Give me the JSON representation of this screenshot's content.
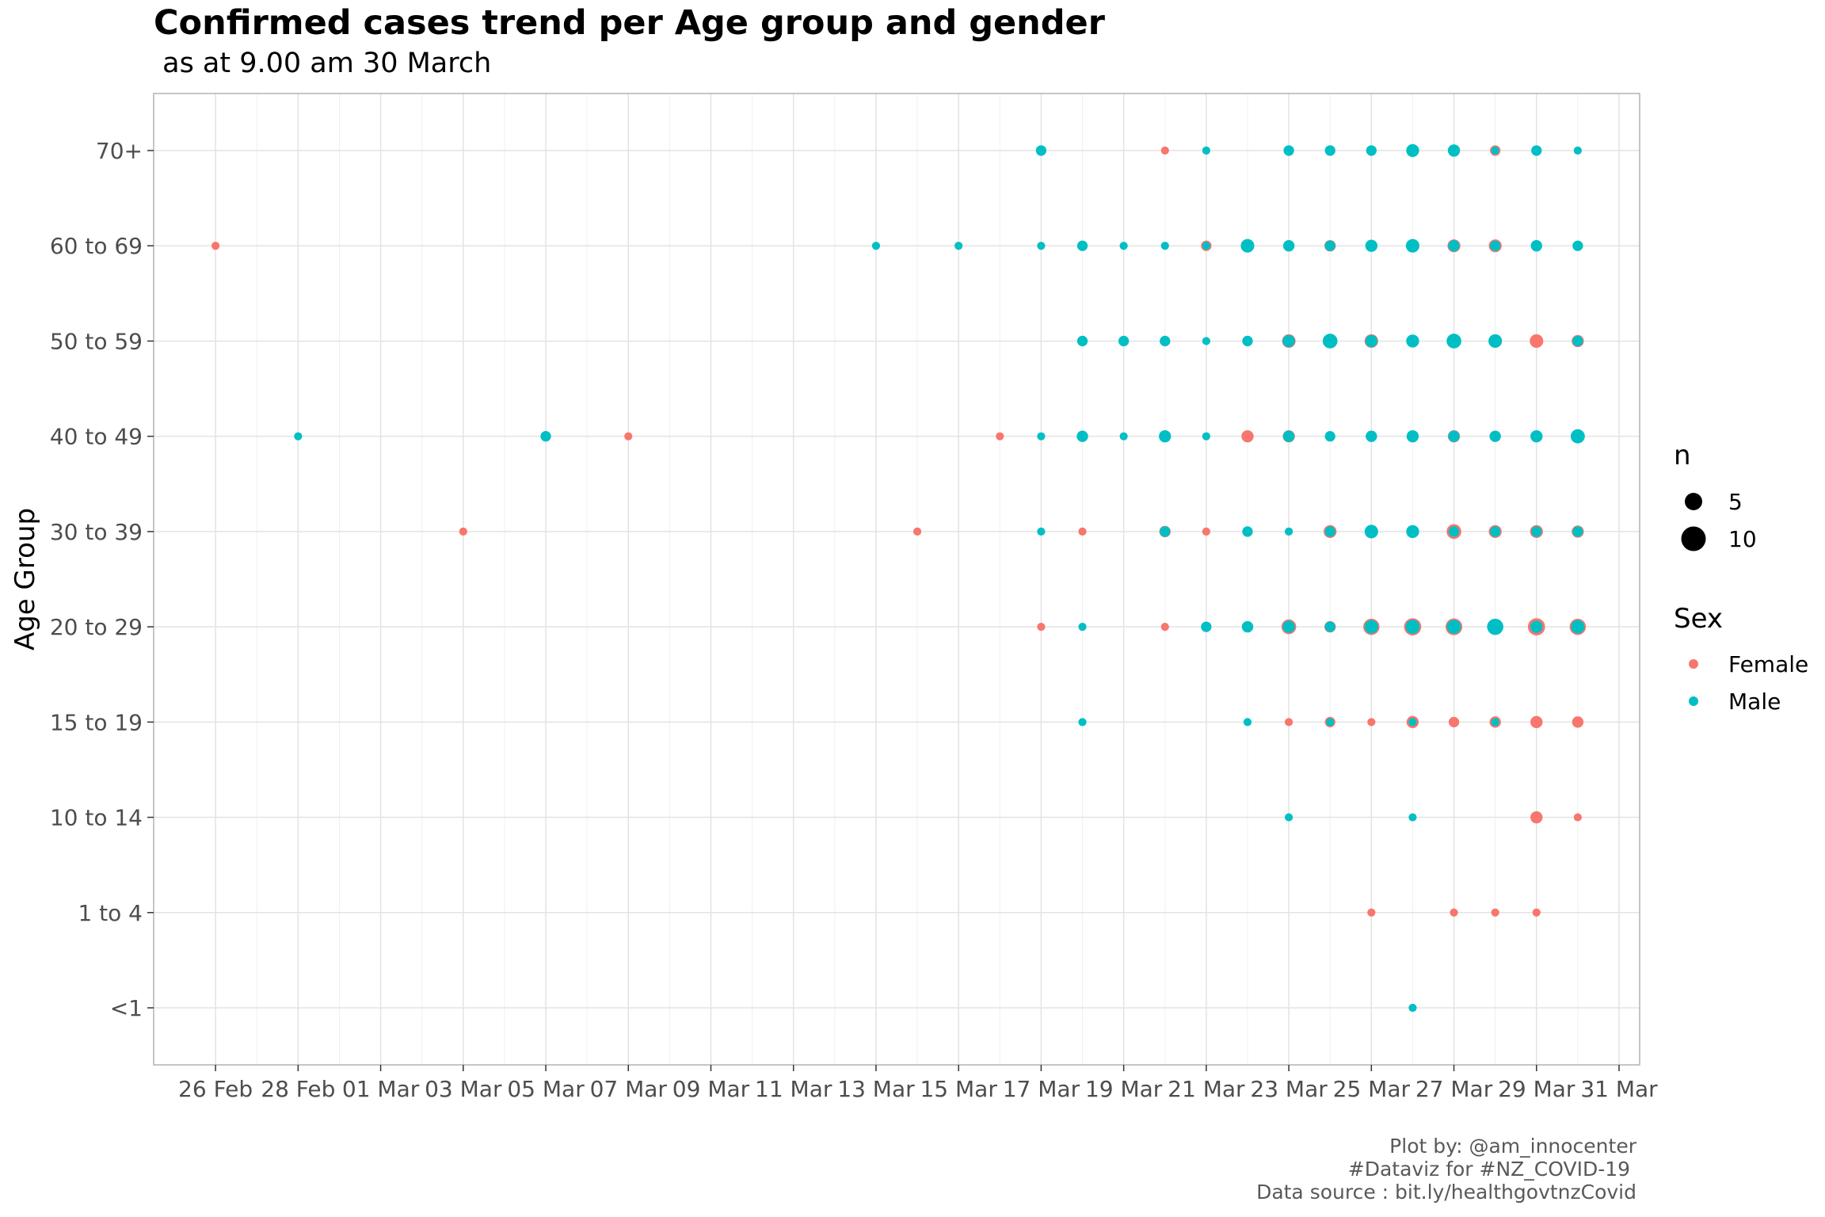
{
  "chart_data": {
    "type": "scatter",
    "title": "Confirmed cases trend per Age group and gender",
    "subtitle": " as at 9.00 am 30 March",
    "ylabel": "Age Group",
    "xlabel": "",
    "x_range": [
      "2020-02-25",
      "2020-03-31"
    ],
    "x_tick_dates": [
      "2020-02-26",
      "2020-02-28",
      "2020-03-01",
      "2020-03-03",
      "2020-03-05",
      "2020-03-07",
      "2020-03-09",
      "2020-03-11",
      "2020-03-13",
      "2020-03-15",
      "2020-03-17",
      "2020-03-19",
      "2020-03-21",
      "2020-03-23",
      "2020-03-25",
      "2020-03-27",
      "2020-03-29",
      "2020-03-31"
    ],
    "x_tick_labels": [
      "26 Feb",
      "28 Feb",
      "01 Mar",
      "03 Mar",
      "05 Mar",
      "07 Mar",
      "09 Mar",
      "11 Mar",
      "13 Mar",
      "15 Mar",
      "17 Mar",
      "19 Mar",
      "21 Mar",
      "23 Mar",
      "25 Mar",
      "27 Mar",
      "29 Mar",
      "31 Mar"
    ],
    "categories": [
      "<1",
      "1 to 4",
      "10 to 14",
      "15 to 19",
      "20 to 29",
      "30 to 39",
      "40 to 49",
      "50 to 59",
      "60 to 69",
      "70+"
    ],
    "grid": true,
    "legend_placement": "right",
    "size_legend": {
      "title": "n",
      "values": [
        5,
        10
      ]
    },
    "color_legend": {
      "title": "Sex",
      "entries": [
        "Female",
        "Male"
      ]
    },
    "colors": {
      "Female": "#F8766D",
      "Male": "#00BFC4"
    },
    "series": [
      {
        "name": "Female",
        "points": [
          {
            "x": "2020-02-26",
            "y": "60 to 69",
            "n": 1
          },
          {
            "x": "2020-03-03",
            "y": "30 to 39",
            "n": 1
          },
          {
            "x": "2020-03-07",
            "y": "40 to 49",
            "n": 1
          },
          {
            "x": "2020-03-14",
            "y": "30 to 39",
            "n": 1
          },
          {
            "x": "2020-03-16",
            "y": "40 to 49",
            "n": 1
          },
          {
            "x": "2020-03-17",
            "y": "20 to 29",
            "n": 1
          },
          {
            "x": "2020-03-18",
            "y": "30 to 39",
            "n": 1
          },
          {
            "x": "2020-03-20",
            "y": "70+",
            "n": 1
          },
          {
            "x": "2020-03-20",
            "y": "30 to 39",
            "n": 4
          },
          {
            "x": "2020-03-20",
            "y": "20 to 29",
            "n": 1
          },
          {
            "x": "2020-03-21",
            "y": "60 to 69",
            "n": 3
          },
          {
            "x": "2020-03-21",
            "y": "30 to 39",
            "n": 1
          },
          {
            "x": "2020-03-22",
            "y": "40 to 49",
            "n": 5
          },
          {
            "x": "2020-03-23",
            "y": "50 to 59",
            "n": 7
          },
          {
            "x": "2020-03-23",
            "y": "40 to 49",
            "n": 5
          },
          {
            "x": "2020-03-23",
            "y": "20 to 29",
            "n": 9
          },
          {
            "x": "2020-03-23",
            "y": "15 to 19",
            "n": 1
          },
          {
            "x": "2020-03-24",
            "y": "60 to 69",
            "n": 4
          },
          {
            "x": "2020-03-24",
            "y": "30 to 39",
            "n": 6
          },
          {
            "x": "2020-03-24",
            "y": "20 to 29",
            "n": 4
          },
          {
            "x": "2020-03-24",
            "y": "15 to 19",
            "n": 3
          },
          {
            "x": "2020-03-25",
            "y": "50 to 59",
            "n": 7
          },
          {
            "x": "2020-03-25",
            "y": "20 to 29",
            "n": 12
          },
          {
            "x": "2020-03-25",
            "y": "15 to 19",
            "n": 1
          },
          {
            "x": "2020-03-25",
            "y": "1 to 4",
            "n": 1
          },
          {
            "x": "2020-03-26",
            "y": "20 to 29",
            "n": 14
          },
          {
            "x": "2020-03-26",
            "y": "15 to 19",
            "n": 5
          },
          {
            "x": "2020-03-27",
            "y": "60 to 69",
            "n": 6
          },
          {
            "x": "2020-03-27",
            "y": "40 to 49",
            "n": 5
          },
          {
            "x": "2020-03-27",
            "y": "30 to 39",
            "n": 9
          },
          {
            "x": "2020-03-27",
            "y": "20 to 29",
            "n": 13
          },
          {
            "x": "2020-03-27",
            "y": "15 to 19",
            "n": 3
          },
          {
            "x": "2020-03-27",
            "y": "1 to 4",
            "n": 1
          },
          {
            "x": "2020-03-28",
            "y": "70+",
            "n": 3
          },
          {
            "x": "2020-03-28",
            "y": "60 to 69",
            "n": 6
          },
          {
            "x": "2020-03-28",
            "y": "30 to 39",
            "n": 6
          },
          {
            "x": "2020-03-28",
            "y": "15 to 19",
            "n": 4
          },
          {
            "x": "2020-03-28",
            "y": "1 to 4",
            "n": 1
          },
          {
            "x": "2020-03-29",
            "y": "50 to 59",
            "n": 7
          },
          {
            "x": "2020-03-29",
            "y": "30 to 39",
            "n": 6
          },
          {
            "x": "2020-03-29",
            "y": "20 to 29",
            "n": 14
          },
          {
            "x": "2020-03-29",
            "y": "15 to 19",
            "n": 5
          },
          {
            "x": "2020-03-29",
            "y": "10 to 14",
            "n": 5
          },
          {
            "x": "2020-03-29",
            "y": "1 to 4",
            "n": 1
          },
          {
            "x": "2020-03-30",
            "y": "50 to 59",
            "n": 5
          },
          {
            "x": "2020-03-30",
            "y": "30 to 39",
            "n": 5
          },
          {
            "x": "2020-03-30",
            "y": "20 to 29",
            "n": 12
          },
          {
            "x": "2020-03-30",
            "y": "15 to 19",
            "n": 4
          },
          {
            "x": "2020-03-30",
            "y": "10 to 14",
            "n": 1
          }
        ]
      },
      {
        "name": "Male",
        "points": [
          {
            "x": "2020-02-28",
            "y": "40 to 49",
            "n": 1
          },
          {
            "x": "2020-03-05",
            "y": "40 to 49",
            "n": 3
          },
          {
            "x": "2020-03-13",
            "y": "60 to 69",
            "n": 1
          },
          {
            "x": "2020-03-15",
            "y": "60 to 69",
            "n": 1
          },
          {
            "x": "2020-03-17",
            "y": "70+",
            "n": 3
          },
          {
            "x": "2020-03-17",
            "y": "60 to 69",
            "n": 1
          },
          {
            "x": "2020-03-17",
            "y": "40 to 49",
            "n": 1
          },
          {
            "x": "2020-03-17",
            "y": "30 to 39",
            "n": 1
          },
          {
            "x": "2020-03-18",
            "y": "60 to 69",
            "n": 3
          },
          {
            "x": "2020-03-18",
            "y": "50 to 59",
            "n": 3
          },
          {
            "x": "2020-03-18",
            "y": "40 to 49",
            "n": 4
          },
          {
            "x": "2020-03-18",
            "y": "20 to 29",
            "n": 1
          },
          {
            "x": "2020-03-18",
            "y": "15 to 19",
            "n": 1
          },
          {
            "x": "2020-03-19",
            "y": "60 to 69",
            "n": 1
          },
          {
            "x": "2020-03-19",
            "y": "50 to 59",
            "n": 3
          },
          {
            "x": "2020-03-19",
            "y": "40 to 49",
            "n": 1
          },
          {
            "x": "2020-03-20",
            "y": "60 to 69",
            "n": 1
          },
          {
            "x": "2020-03-20",
            "y": "50 to 59",
            "n": 3
          },
          {
            "x": "2020-03-20",
            "y": "40 to 49",
            "n": 5
          },
          {
            "x": "2020-03-20",
            "y": "30 to 39",
            "n": 3
          },
          {
            "x": "2020-03-21",
            "y": "70+",
            "n": 1
          },
          {
            "x": "2020-03-21",
            "y": "60 to 69",
            "n": 1
          },
          {
            "x": "2020-03-21",
            "y": "50 to 59",
            "n": 1
          },
          {
            "x": "2020-03-21",
            "y": "40 to 49",
            "n": 1
          },
          {
            "x": "2020-03-21",
            "y": "20 to 29",
            "n": 3
          },
          {
            "x": "2020-03-22",
            "y": "60 to 69",
            "n": 7
          },
          {
            "x": "2020-03-22",
            "y": "50 to 59",
            "n": 3
          },
          {
            "x": "2020-03-22",
            "y": "30 to 39",
            "n": 3
          },
          {
            "x": "2020-03-22",
            "y": "20 to 29",
            "n": 4
          },
          {
            "x": "2020-03-22",
            "y": "15 to 19",
            "n": 1
          },
          {
            "x": "2020-03-23",
            "y": "70+",
            "n": 3
          },
          {
            "x": "2020-03-23",
            "y": "60 to 69",
            "n": 4
          },
          {
            "x": "2020-03-23",
            "y": "50 to 59",
            "n": 5
          },
          {
            "x": "2020-03-23",
            "y": "40 to 49",
            "n": 4
          },
          {
            "x": "2020-03-23",
            "y": "30 to 39",
            "n": 1
          },
          {
            "x": "2020-03-23",
            "y": "20 to 29",
            "n": 5
          },
          {
            "x": "2020-03-23",
            "y": "10 to 14",
            "n": 1
          },
          {
            "x": "2020-03-24",
            "y": "70+",
            "n": 3
          },
          {
            "x": "2020-03-24",
            "y": "60 to 69",
            "n": 3
          },
          {
            "x": "2020-03-24",
            "y": "50 to 59",
            "n": 9
          },
          {
            "x": "2020-03-24",
            "y": "40 to 49",
            "n": 3
          },
          {
            "x": "2020-03-24",
            "y": "30 to 39",
            "n": 3
          },
          {
            "x": "2020-03-24",
            "y": "20 to 29",
            "n": 3
          },
          {
            "x": "2020-03-24",
            "y": "15 to 19",
            "n": 1
          },
          {
            "x": "2020-03-25",
            "y": "70+",
            "n": 3
          },
          {
            "x": "2020-03-25",
            "y": "60 to 69",
            "n": 5
          },
          {
            "x": "2020-03-25",
            "y": "50 to 59",
            "n": 5
          },
          {
            "x": "2020-03-25",
            "y": "40 to 49",
            "n": 4
          },
          {
            "x": "2020-03-25",
            "y": "30 to 39",
            "n": 7
          },
          {
            "x": "2020-03-25",
            "y": "20 to 29",
            "n": 7
          },
          {
            "x": "2020-03-26",
            "y": "70+",
            "n": 6
          },
          {
            "x": "2020-03-26",
            "y": "60 to 69",
            "n": 7
          },
          {
            "x": "2020-03-26",
            "y": "50 to 59",
            "n": 6
          },
          {
            "x": "2020-03-26",
            "y": "40 to 49",
            "n": 5
          },
          {
            "x": "2020-03-26",
            "y": "30 to 39",
            "n": 6
          },
          {
            "x": "2020-03-26",
            "y": "20 to 29",
            "n": 8
          },
          {
            "x": "2020-03-26",
            "y": "15 to 19",
            "n": 1
          },
          {
            "x": "2020-03-26",
            "y": "10 to 14",
            "n": 1
          },
          {
            "x": "2020-03-26",
            "y": "<1",
            "n": 1
          },
          {
            "x": "2020-03-27",
            "y": "70+",
            "n": 5
          },
          {
            "x": "2020-03-27",
            "y": "60 to 69",
            "n": 4
          },
          {
            "x": "2020-03-27",
            "y": "50 to 59",
            "n": 9
          },
          {
            "x": "2020-03-27",
            "y": "40 to 49",
            "n": 4
          },
          {
            "x": "2020-03-27",
            "y": "30 to 39",
            "n": 3
          },
          {
            "x": "2020-03-27",
            "y": "20 to 29",
            "n": 8
          },
          {
            "x": "2020-03-28",
            "y": "70+",
            "n": 1
          },
          {
            "x": "2020-03-28",
            "y": "60 to 69",
            "n": 3
          },
          {
            "x": "2020-03-28",
            "y": "50 to 59",
            "n": 7
          },
          {
            "x": "2020-03-28",
            "y": "40 to 49",
            "n": 4
          },
          {
            "x": "2020-03-28",
            "y": "30 to 39",
            "n": 3
          },
          {
            "x": "2020-03-28",
            "y": "20 to 29",
            "n": 12
          },
          {
            "x": "2020-03-28",
            "y": "15 to 19",
            "n": 1
          },
          {
            "x": "2020-03-29",
            "y": "70+",
            "n": 3
          },
          {
            "x": "2020-03-29",
            "y": "60 to 69",
            "n": 4
          },
          {
            "x": "2020-03-29",
            "y": "40 to 49",
            "n": 5
          },
          {
            "x": "2020-03-29",
            "y": "30 to 39",
            "n": 3
          },
          {
            "x": "2020-03-29",
            "y": "20 to 29",
            "n": 5
          },
          {
            "x": "2020-03-30",
            "y": "70+",
            "n": 1
          },
          {
            "x": "2020-03-30",
            "y": "60 to 69",
            "n": 3
          },
          {
            "x": "2020-03-30",
            "y": "50 to 59",
            "n": 3
          },
          {
            "x": "2020-03-30",
            "y": "40 to 49",
            "n": 8
          },
          {
            "x": "2020-03-30",
            "y": "30 to 39",
            "n": 3
          },
          {
            "x": "2020-03-30",
            "y": "20 to 29",
            "n": 7
          }
        ]
      }
    ]
  },
  "caption": {
    "line1": "Plot by: @am_innocenter",
    "line2": "#Dataviz for #NZ_COVID-19 ",
    "line3": "Data source : bit.ly/healthgovtnzCovid"
  }
}
